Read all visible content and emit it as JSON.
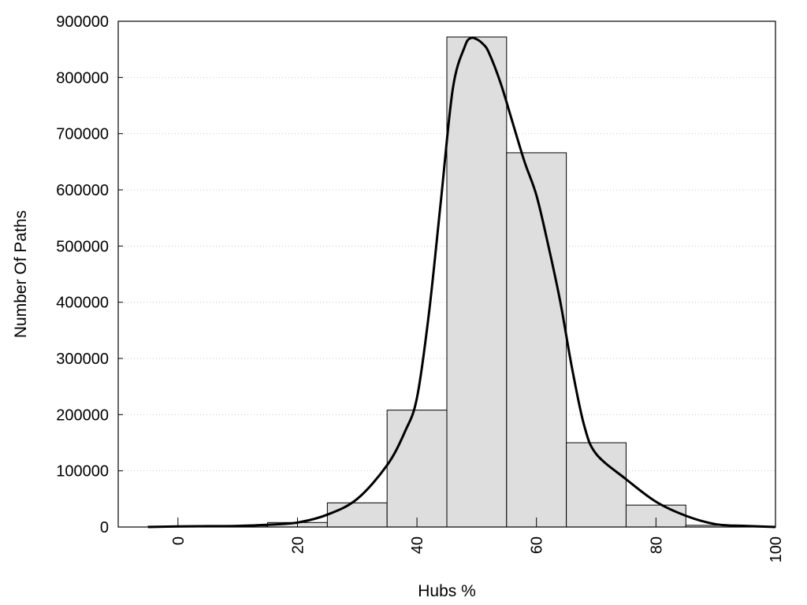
{
  "chart_data": {
    "type": "bar",
    "xlabel": "Hubs %",
    "ylabel": "Number Of Paths",
    "xlim": [
      -10,
      100
    ],
    "ylim": [
      0,
      900000
    ],
    "x_ticks": [
      0,
      20,
      40,
      60,
      80,
      100
    ],
    "y_ticks": [
      0,
      100000,
      200000,
      300000,
      400000,
      500000,
      600000,
      700000,
      800000,
      900000
    ],
    "grid": "horizontal dotted",
    "bars": [
      {
        "x_start": -5,
        "x_end": 5,
        "value": 1500
      },
      {
        "x_start": 5,
        "x_end": 15,
        "value": 2000
      },
      {
        "x_start": 15,
        "x_end": 25,
        "value": 8000
      },
      {
        "x_start": 25,
        "x_end": 35,
        "value": 43000
      },
      {
        "x_start": 35,
        "x_end": 45,
        "value": 208000
      },
      {
        "x_start": 45,
        "x_end": 55,
        "value": 872000
      },
      {
        "x_start": 55,
        "x_end": 65,
        "value": 666000
      },
      {
        "x_start": 65,
        "x_end": 75,
        "value": 150000
      },
      {
        "x_start": 75,
        "x_end": 85,
        "value": 39000
      },
      {
        "x_start": 85,
        "x_end": 95,
        "value": 3000
      }
    ],
    "curve": {
      "x": [
        -5,
        0,
        5,
        10,
        15,
        20,
        25,
        30,
        35,
        38,
        40,
        42,
        44,
        46,
        48,
        49,
        50,
        51,
        52,
        54,
        56,
        58,
        60,
        62,
        64,
        66,
        68,
        70,
        75,
        80,
        85,
        90,
        95,
        100
      ],
      "y": [
        0,
        1000,
        1500,
        2000,
        4000,
        8000,
        22000,
        50000,
        110000,
        170000,
        230000,
        380000,
        580000,
        780000,
        855000,
        870000,
        868000,
        860000,
        845000,
        790000,
        720000,
        650000,
        590000,
        500000,
        400000,
        280000,
        180000,
        130000,
        85000,
        45000,
        20000,
        5000,
        2000,
        0
      ]
    },
    "colors": {
      "bar_fill": "#dedede",
      "bar_stroke": "#000000",
      "curve": "#000000"
    }
  }
}
